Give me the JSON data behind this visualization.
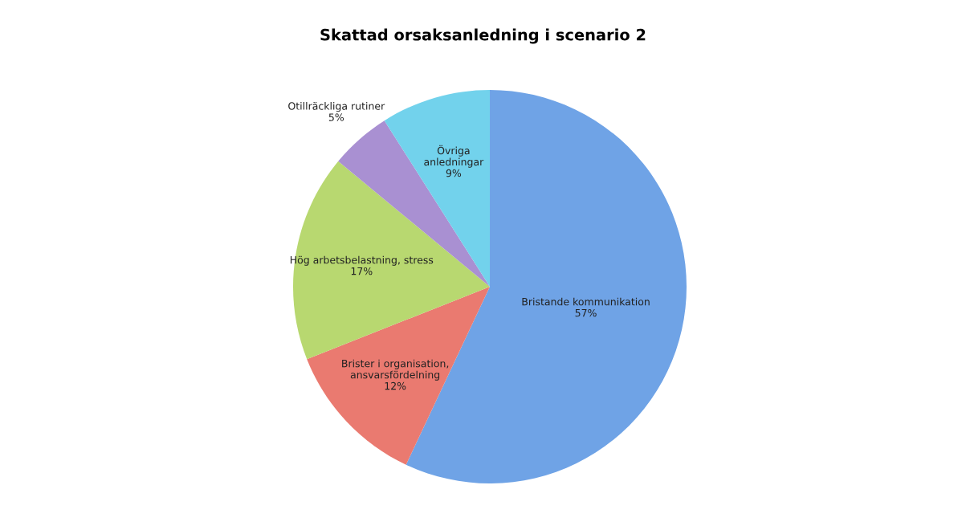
{
  "chart_data": {
    "type": "pie",
    "title": "Skattad orsaksanledning i scenario 2",
    "categories": [
      "Bristande kommunikation",
      "Brister i organisation,\nansvarsfördelning",
      "Hög arbetsbelastning, stress",
      "Otillräckliga rutiner",
      "Övriga\nanledningar"
    ],
    "values": [
      57,
      12,
      17,
      5,
      9
    ],
    "colors": [
      "#6fa3e6",
      "#ea7a70",
      "#b8d870",
      "#a990d2",
      "#72d2ec"
    ],
    "value_labels": [
      "57%",
      "12%",
      "17%",
      "5%",
      "9%"
    ],
    "legend": false
  }
}
